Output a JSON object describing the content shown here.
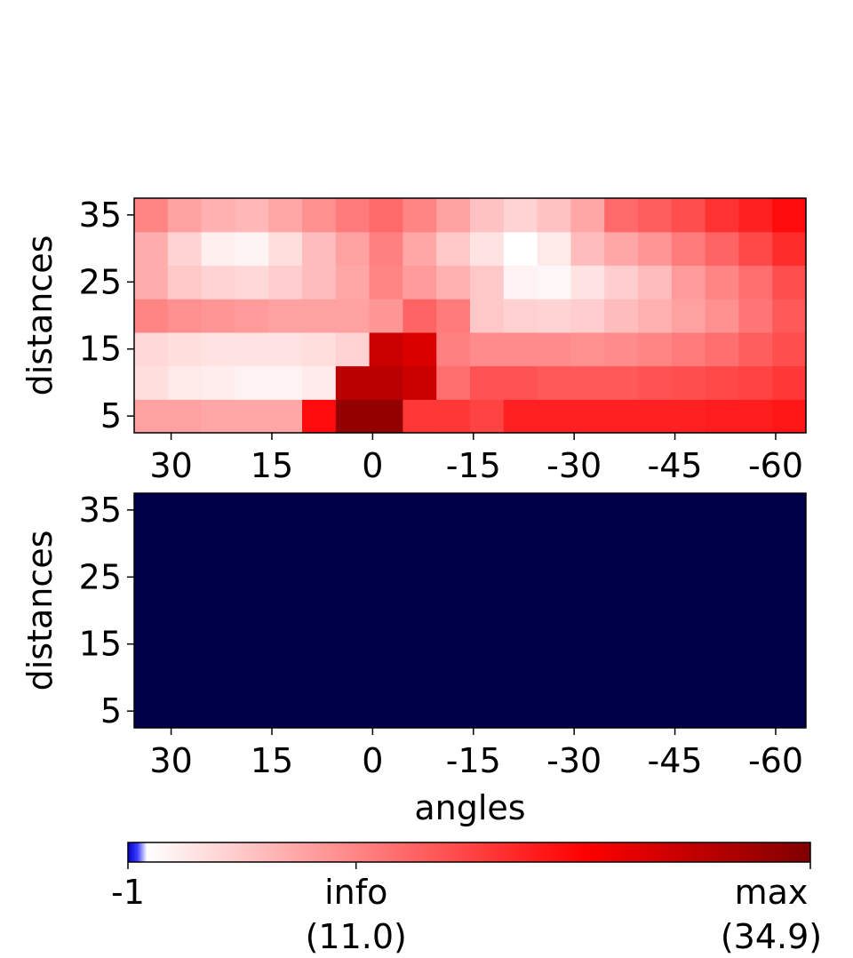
{
  "chart_data": [
    {
      "type": "heatmap",
      "xlabel": "",
      "ylabel": "distances",
      "x_ticks": [
        "30",
        "15",
        "0",
        "-15",
        "-30",
        "-45",
        "-60"
      ],
      "y_ticks": [
        "35",
        "25",
        "15",
        "5"
      ],
      "columns": [
        "33",
        "28",
        "23",
        "18",
        "13",
        "8",
        "3",
        "-2",
        "-7",
        "-12",
        "-17",
        "-22",
        "-27",
        "-32",
        "-37",
        "-42",
        "-47",
        "-52",
        "-57",
        "-62"
      ],
      "rows": [
        "5",
        "10",
        "15",
        "20",
        "25",
        "30",
        "35"
      ],
      "values": [
        [
          8.5,
          8.5,
          8.0,
          8.0,
          8.0,
          22.0,
          33.0,
          33.0,
          18.0,
          18.0,
          17.0,
          20.0,
          20.0,
          20.0,
          20.0,
          20.0,
          20.0,
          20.5,
          20.5,
          21.0
        ],
        [
          3.0,
          2.0,
          1.6,
          1.2,
          1.2,
          1.8,
          29.5,
          29.5,
          28.0,
          13.0,
          15.5,
          15.5,
          15.0,
          15.0,
          15.0,
          15.5,
          16.0,
          16.5,
          17.0,
          18.0
        ],
        [
          3.5,
          3.0,
          2.5,
          2.5,
          2.5,
          3.0,
          4.0,
          28.0,
          26.5,
          11.5,
          10.5,
          10.5,
          10.5,
          10.0,
          10.5,
          11.0,
          12.0,
          13.0,
          14.5,
          16.0
        ],
        [
          11.0,
          10.0,
          9.5,
          9.0,
          8.5,
          8.5,
          8.5,
          9.5,
          14.0,
          12.0,
          5.0,
          4.2,
          4.0,
          4.5,
          6.0,
          7.0,
          8.5,
          10.0,
          12.5,
          15.0
        ],
        [
          7.5,
          5.0,
          4.0,
          3.5,
          4.5,
          6.0,
          8.0,
          11.0,
          9.0,
          7.0,
          5.0,
          1.2,
          0.7,
          2.5,
          4.5,
          6.0,
          9.0,
          11.0,
          13.0,
          16.0
        ],
        [
          7.5,
          4.0,
          1.5,
          1.0,
          3.0,
          6.0,
          8.5,
          11.5,
          8.0,
          5.0,
          2.5,
          0.0,
          2.0,
          6.0,
          8.0,
          9.5,
          12.0,
          14.0,
          16.5,
          19.0
        ],
        [
          11.0,
          8.5,
          7.0,
          6.5,
          8.0,
          10.0,
          12.0,
          13.5,
          11.0,
          8.5,
          5.5,
          4.0,
          5.5,
          8.0,
          13.5,
          14.5,
          16.0,
          18.5,
          20.0,
          22.0
        ]
      ]
    },
    {
      "type": "heatmap",
      "xlabel": "angles",
      "ylabel": "distances",
      "x_ticks": [
        "30",
        "15",
        "0",
        "-15",
        "-30",
        "-45",
        "-60"
      ],
      "y_ticks": [
        "35",
        "25",
        "15",
        "5"
      ],
      "fill_value": -1
    }
  ],
  "colorbar": {
    "min": -1,
    "info": 11.0,
    "max": 34.9,
    "min_label": "-1",
    "info_label": "info",
    "info_value": "(11.0)",
    "max_label": "max",
    "max_value": "(34.9)"
  }
}
